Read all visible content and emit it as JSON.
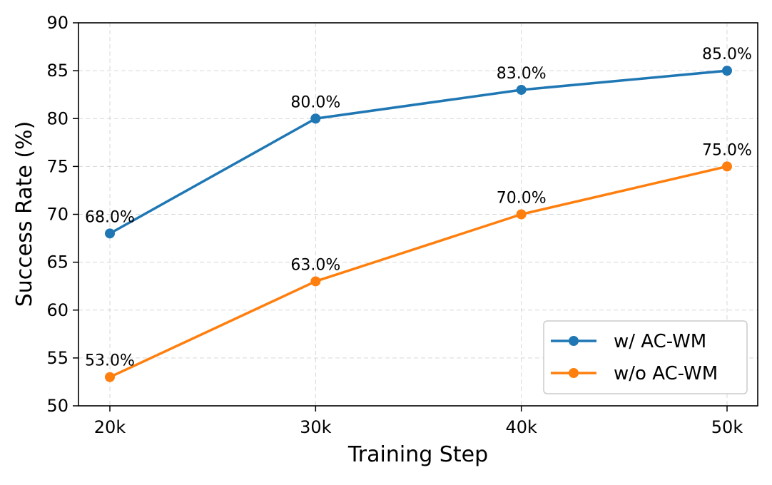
{
  "chart_data": {
    "type": "line",
    "categories": [
      "20k",
      "30k",
      "40k",
      "50k"
    ],
    "series": [
      {
        "name": "w/ AC-WM",
        "color": "#1f77b4",
        "values": [
          68.0,
          80.0,
          83.0,
          85.0
        ],
        "labels": [
          "68.0%",
          "80.0%",
          "83.0%",
          "85.0%"
        ]
      },
      {
        "name": "w/o AC-WM",
        "color": "#ff7f0e",
        "values": [
          53.0,
          63.0,
          70.0,
          75.0
        ],
        "labels": [
          "53.0%",
          "63.0%",
          "70.0%",
          "75.0%"
        ]
      }
    ],
    "xlabel": "Training Step",
    "ylabel": "Success Rate (%)",
    "ylim": [
      50,
      90
    ],
    "yticks": [
      "50",
      "55",
      "60",
      "65",
      "70",
      "75",
      "80",
      "85",
      "90"
    ],
    "grid": true,
    "legend_position": "bottom-right"
  }
}
